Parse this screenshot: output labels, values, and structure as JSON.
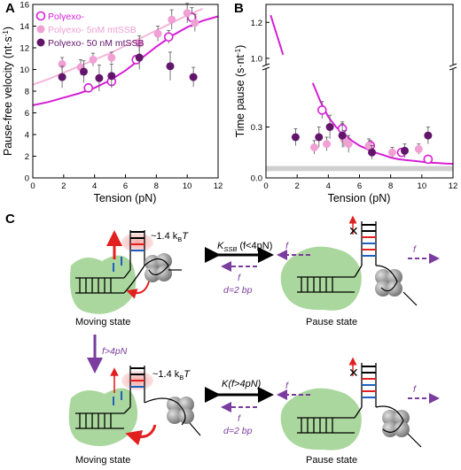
{
  "panels": {
    "a": "A",
    "b": "B",
    "c": "C"
  },
  "colors": {
    "open": "#d61fd6",
    "light": "#f1a0d4",
    "dark": "#62156b",
    "fit_a": "#d61fd6",
    "fit_light": "#f5b6d9",
    "fit_b": "#d61fd6",
    "green": "#9bd08c",
    "red": "#e32020",
    "purple": "#7a3c9e",
    "gray": "#cfcfcf"
  },
  "chart_data": [
    {
      "type": "scatter",
      "xlabel": "Tension (pN)",
      "ylabel": "Pause-free velocity (nt·s",
      "ylabel_sup": "-1",
      "ylabel_close": ")",
      "xlim": [
        0,
        12
      ],
      "ylim": [
        0,
        16
      ],
      "xticks": [
        "0",
        "2",
        "4",
        "6",
        "8",
        "10",
        "12"
      ],
      "yticks": [
        "0",
        "2",
        "4",
        "6",
        "8",
        "10",
        "12",
        "14",
        "16"
      ],
      "legend": [
        "Polγexo-",
        "Polγexo- 5nM mtSSB",
        "Polγexo- 50 nM mtSSB"
      ],
      "series": [
        {
          "name": "Polγexo-",
          "marker": "open",
          "x": [
            3.6,
            5.1,
            6.7,
            8.8,
            10.3
          ],
          "y": [
            8.3,
            8.9,
            10.9,
            13.0,
            14.8
          ],
          "err": [
            0.4,
            0.5,
            0.4,
            0.6,
            0.9
          ]
        },
        {
          "name": "Polγexo- 5nM mtSSB",
          "marker": "light",
          "x": [
            1.9,
            3.1,
            3.9,
            5.1,
            6.9,
            8.1,
            9.0,
            10.0,
            10.5
          ],
          "y": [
            10.5,
            10.2,
            10.9,
            11.1,
            12.4,
            13.3,
            14.6,
            15.2,
            14.3
          ],
          "err": [
            0.6,
            0.7,
            0.6,
            0.5,
            0.7,
            0.7,
            0.9,
            0.9,
            0.8
          ]
        },
        {
          "name": "Polγexo- 50 nM mtSSB",
          "marker": "dark",
          "x": [
            1.9,
            3.3,
            4.3,
            5.1,
            6.9,
            8.9,
            10.4
          ],
          "y": [
            9.3,
            9.8,
            9.2,
            9.4,
            11.1,
            10.3,
            9.3
          ],
          "err": [
            1.0,
            1.0,
            1.2,
            1.1,
            1.1,
            1.3,
            0.9
          ]
        }
      ],
      "fits": [
        {
          "color": "open",
          "x": [
            0,
            1,
            2,
            3,
            4,
            5,
            6,
            7,
            8,
            9,
            10,
            11,
            12
          ],
          "y": [
            6.7,
            7.0,
            7.4,
            7.8,
            8.3,
            9.0,
            9.9,
            11.0,
            12.1,
            13.1,
            13.9,
            14.5,
            14.9
          ]
        },
        {
          "color": "light",
          "x": [
            0,
            1,
            2,
            3,
            4,
            5,
            6,
            7,
            8,
            9,
            10,
            11
          ],
          "y": [
            8.6,
            9.1,
            9.7,
            10.3,
            10.9,
            11.5,
            12.2,
            12.9,
            13.6,
            14.3,
            15.0,
            15.6
          ]
        }
      ]
    },
    {
      "type": "scatter",
      "xlabel": "Tension (pN)",
      "ylabel": "Time pause (s·nt",
      "ylabel_sup": "-1",
      "ylabel_close": ")",
      "xlim": [
        0,
        12
      ],
      "yticks": [
        "0.0",
        "0.3",
        "1.0",
        "1.2"
      ],
      "xticks": [
        "0",
        "2",
        "4",
        "6",
        "8",
        "10",
        "12"
      ],
      "axis_break": true,
      "series": [
        {
          "name": "Polγexo-",
          "marker": "open",
          "x": [
            3.6,
            4.9,
            6.7,
            8.7,
            10.4
          ],
          "y": [
            0.4,
            0.29,
            0.19,
            0.15,
            0.11
          ],
          "err": [
            0.05,
            0.04,
            0.03,
            0.02,
            0.02
          ]
        },
        {
          "name": "Polγexo- 5nM mtSSB",
          "marker": "light",
          "x": [
            3.1,
            3.9,
            5.0,
            5.3,
            6.6,
            8.1,
            9.8
          ],
          "y": [
            0.18,
            0.2,
            0.23,
            0.2,
            0.19,
            0.15,
            0.17
          ],
          "err": [
            0.04,
            0.04,
            0.05,
            0.05,
            0.04,
            0.03,
            0.03
          ]
        },
        {
          "name": "Polγexo- 50 nM mtSSB",
          "marker": "dark",
          "x": [
            1.9,
            3.4,
            4.1,
            4.9,
            6.8,
            8.9,
            10.4
          ],
          "y": [
            0.24,
            0.24,
            0.3,
            0.25,
            0.15,
            0.16,
            0.25
          ],
          "err": [
            0.05,
            0.06,
            0.07,
            0.07,
            0.04,
            0.04,
            0.05
          ]
        }
      ],
      "fit": {
        "x": [
          0.3,
          1.1
        ],
        "y_upper": [
          1.24,
          1.02
        ],
        "x_lower": [
          3.0,
          3.5,
          4.0,
          4.5,
          5.0,
          5.5,
          6.0,
          6.5,
          7.0,
          7.5,
          8.0,
          8.5,
          9.0,
          9.5,
          10.0,
          10.5,
          11.0,
          11.5,
          12.0
        ],
        "y_lower": [
          0.56,
          0.45,
          0.36,
          0.3,
          0.26,
          0.22,
          0.19,
          0.17,
          0.15,
          0.135,
          0.12,
          0.11,
          0.105,
          0.1,
          0.095,
          0.09,
          0.088,
          0.085,
          0.083
        ]
      },
      "band": [
        0.04,
        0.07
      ]
    }
  ],
  "schematic": {
    "top_energy": "~1.4 k",
    "top_energy_sub": "B",
    "top_energy_T": "T",
    "kssb": "K",
    "kssb_sub": "SSB",
    "kssb_cond": " (f<4pN)",
    "f_label": "f",
    "d_label": "d=2 bp",
    "moving_state": "Moving state",
    "pause_state": "Pause state",
    "transition": "f>4pN",
    "bottom_energy": "~1.4 k",
    "bottom_energy_sub": "B",
    "bottom_energy_T": "T",
    "kbottom": "K(f>4pN)"
  }
}
